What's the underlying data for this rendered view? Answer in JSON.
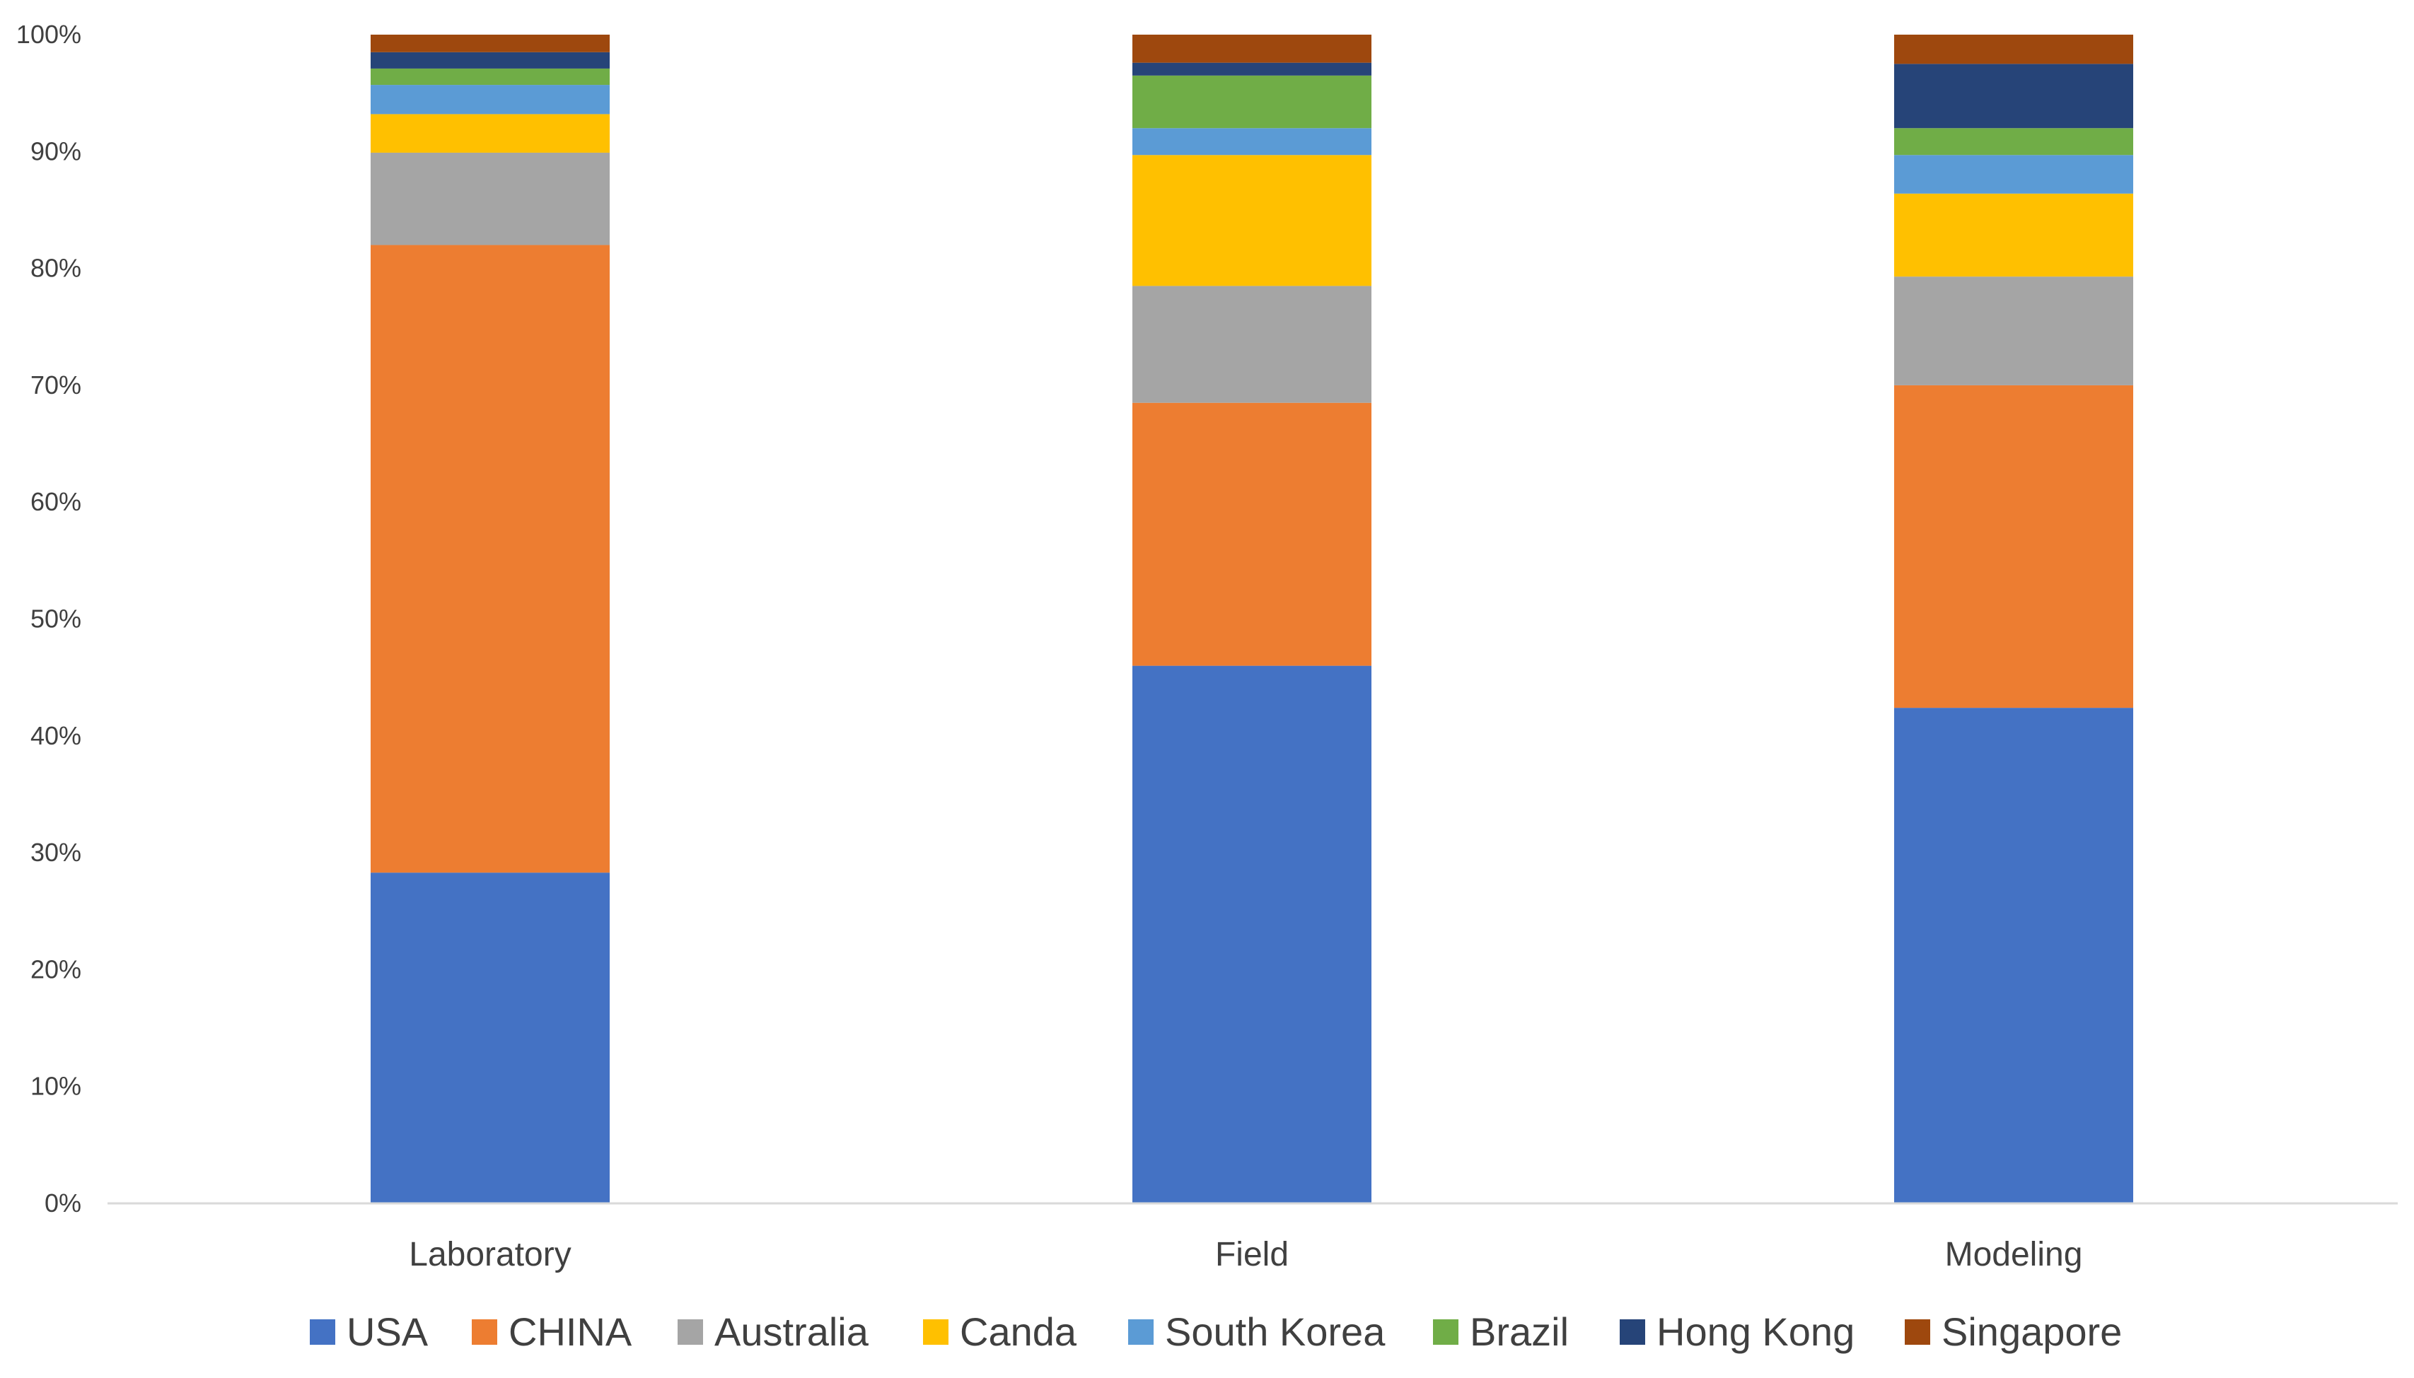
{
  "chart_data": {
    "type": "bar",
    "stacked": "percent",
    "title": "",
    "xlabel": "",
    "ylabel": "",
    "ylim": [
      0,
      100
    ],
    "y_ticks": [
      "0%",
      "10%",
      "20%",
      "30%",
      "40%",
      "50%",
      "60%",
      "70%",
      "80%",
      "90%",
      "100%"
    ],
    "y_tick_values": [
      0,
      10,
      20,
      30,
      40,
      50,
      60,
      70,
      80,
      90,
      100
    ],
    "grid": false,
    "legend_position": "bottom",
    "categories": [
      "Laboratory",
      "Field",
      "Modeling"
    ],
    "series": [
      {
        "name": "USA",
        "color": "#4472C4",
        "values": [
          28.3,
          46.0,
          42.4
        ]
      },
      {
        "name": "CHINA",
        "color": "#ED7D31",
        "values": [
          53.7,
          22.5,
          27.6
        ]
      },
      {
        "name": "Australia",
        "color": "#A5A5A5",
        "values": [
          7.9,
          10.0,
          9.3
        ]
      },
      {
        "name": "Canda",
        "color": "#FFC000",
        "values": [
          3.3,
          11.2,
          7.1
        ]
      },
      {
        "name": "South Korea",
        "color": "#5B9BD5",
        "values": [
          2.5,
          2.3,
          3.3
        ]
      },
      {
        "name": "Brazil",
        "color": "#70AD47",
        "values": [
          1.4,
          4.5,
          2.3
        ]
      },
      {
        "name": "Hong Kong",
        "color": "#264478",
        "values": [
          1.4,
          1.1,
          5.5
        ]
      },
      {
        "name": "Singapore",
        "color": "#9E480E",
        "values": [
          1.5,
          2.4,
          2.5
        ]
      }
    ]
  }
}
